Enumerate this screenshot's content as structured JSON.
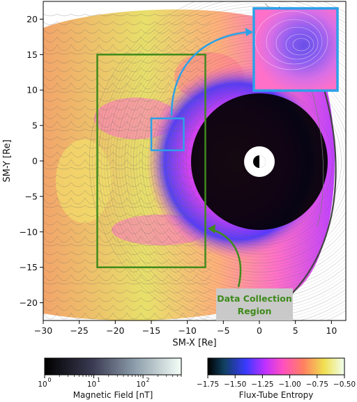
{
  "chart_data": {
    "type": "heatmap",
    "xlabel": "SM-X [Re]",
    "ylabel": "SM-Y [Re]",
    "xlim": [
      -30,
      12
    ],
    "ylim": [
      -22.5,
      22.5
    ],
    "xticks": [
      -30,
      -25,
      -20,
      -15,
      -10,
      -5,
      0,
      5,
      10
    ],
    "yticks": [
      -20,
      -15,
      -10,
      -5,
      0,
      5,
      10,
      15,
      20
    ],
    "xtick_labels": [
      "−30",
      "−25",
      "−20",
      "−15",
      "−10",
      "−5",
      "0",
      "5",
      "10"
    ],
    "ytick_labels": [
      "−20",
      "−15",
      "−10",
      "−5",
      "0",
      "5",
      "10",
      "15",
      "20"
    ],
    "grid": false,
    "data_collection_region": {
      "x": [
        -22.5,
        -7.5
      ],
      "y": [
        -15,
        15
      ]
    },
    "zoom_source_box": {
      "x": [
        -15,
        -10.5
      ],
      "y": [
        1.5,
        6
      ]
    },
    "annotation": {
      "line1": "Data Collection",
      "line2": "Region"
    },
    "colorbars": [
      {
        "label": "Magnetic Field [nT]",
        "scale": "log",
        "range": [
          1,
          600
        ],
        "tick_labels": [
          "10",
          "10",
          "10"
        ],
        "tick_exponents": [
          "0",
          "1",
          "2"
        ],
        "tick_values": [
          1,
          10,
          100
        ],
        "colormap": "bone"
      },
      {
        "label": "Flux-Tube Entropy",
        "scale": "linear",
        "range": [
          -1.75,
          -0.5
        ],
        "tick_values": [
          -1.75,
          -1.5,
          -1.25,
          -1.0,
          -0.75,
          -0.5
        ],
        "tick_labels": [
          "−1.75",
          "−1.50",
          "−1.25",
          "−1.00",
          "−0.75",
          "−0.50"
        ],
        "colormap": "gnuplot2-like"
      }
    ]
  },
  "colors": {
    "green_box": "#3f8a1c",
    "blue_box": "#2aa1e8",
    "annotation_text": "#3f8a1c",
    "annotation_bg": "#c9c9c9"
  }
}
